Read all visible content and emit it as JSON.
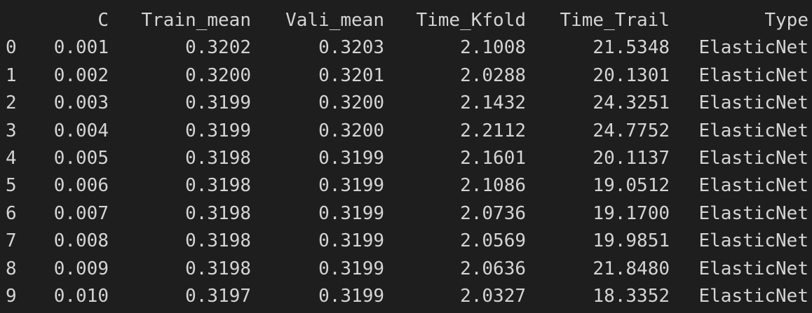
{
  "output": {
    "columns": [
      "",
      "C",
      "Train_mean",
      "Vali_mean",
      "Time_Kfold",
      "Time_Trail",
      "Type"
    ],
    "rows": [
      [
        "0",
        "0.001",
        "0.3202",
        "0.3203",
        "2.1008",
        "21.5348",
        "ElasticNet"
      ],
      [
        "1",
        "0.002",
        "0.3200",
        "0.3201",
        "2.0288",
        "20.1301",
        "ElasticNet"
      ],
      [
        "2",
        "0.003",
        "0.3199",
        "0.3200",
        "2.1432",
        "24.3251",
        "ElasticNet"
      ],
      [
        "3",
        "0.004",
        "0.3199",
        "0.3200",
        "2.2112",
        "24.7752",
        "ElasticNet"
      ],
      [
        "4",
        "0.005",
        "0.3198",
        "0.3199",
        "2.1601",
        "20.1137",
        "ElasticNet"
      ],
      [
        "5",
        "0.006",
        "0.3198",
        "0.3199",
        "2.1086",
        "19.0512",
        "ElasticNet"
      ],
      [
        "6",
        "0.007",
        "0.3198",
        "0.3199",
        "2.0736",
        "19.1700",
        "ElasticNet"
      ],
      [
        "7",
        "0.008",
        "0.3198",
        "0.3199",
        "2.0569",
        "19.9851",
        "ElasticNet"
      ],
      [
        "8",
        "0.009",
        "0.3198",
        "0.3199",
        "2.0636",
        "21.8480",
        "ElasticNet"
      ],
      [
        "9",
        "0.010",
        "0.3197",
        "0.3199",
        "2.0327",
        "18.3352",
        "ElasticNet"
      ]
    ]
  }
}
